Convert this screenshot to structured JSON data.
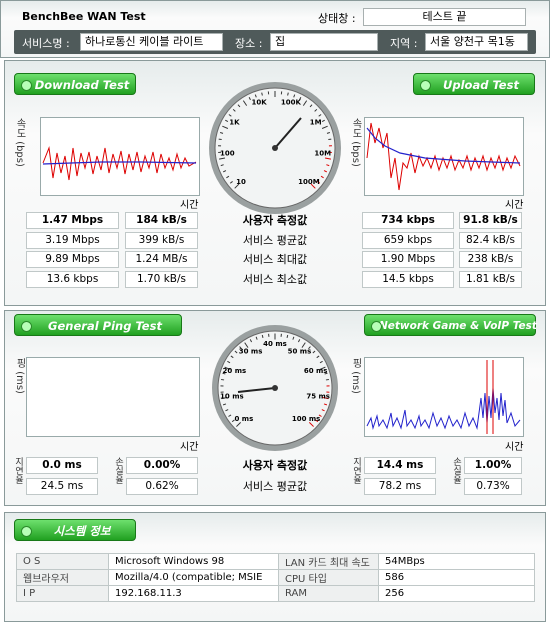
{
  "header": {
    "title": "BenchBee WAN Test",
    "status_label": "상태창 :",
    "status": "테스트 끝",
    "service_label": "서비스명 :",
    "service": "하나로통신 케이블 라이트",
    "place_label": "장소 :",
    "place": "집",
    "region_label": "지역 :",
    "region": "서울 양천구 목1동"
  },
  "speed": {
    "download_button": "Download Test",
    "upload_button": "Upload Test",
    "y_label": "속도 (bps)",
    "x_label": "시간",
    "gauge_labels": [
      "10",
      "100",
      "1K",
      "10K",
      "100K",
      "1M",
      "10M",
      "100M"
    ],
    "row_labels": [
      "사용자 측정값",
      "서비스 평균값",
      "서비스 최대값",
      "서비스 최소값"
    ],
    "download": [
      [
        "1.47 Mbps",
        "184 kB/s"
      ],
      [
        "3.19 Mbps",
        "399 kB/s"
      ],
      [
        "9.89 Mbps",
        "1.24 MB/s"
      ],
      [
        "13.6 kbps",
        "1.70 kB/s"
      ]
    ],
    "upload": [
      [
        "734 kbps",
        "91.8 kB/s"
      ],
      [
        "659 kbps",
        "82.4 kB/s"
      ],
      [
        "1.90 Mbps",
        "238 kB/s"
      ],
      [
        "14.5 kbps",
        "1.81 kB/s"
      ]
    ]
  },
  "ping": {
    "ping_button": "General Ping Test",
    "game_button": "Network Game & VoIP Test",
    "y_label": "핑 (ms)",
    "x_label": "시간",
    "delay_label": "지연율",
    "loss_label": "손실율",
    "gauge_labels": [
      "0 ms",
      "10 ms",
      "20 ms",
      "30 ms",
      "40 ms",
      "50 ms",
      "60 ms",
      "75 ms",
      "100 ms"
    ],
    "row_labels": [
      "사용자 측정값",
      "서비스 평균값"
    ],
    "general": [
      [
        "0.0 ms",
        "0.00%"
      ],
      [
        "24.5 ms",
        "0.62%"
      ]
    ],
    "game": [
      [
        "14.4 ms",
        "1.00%"
      ],
      [
        "78.2 ms",
        "0.73%"
      ]
    ]
  },
  "system": {
    "button": "시스템 정보",
    "rows": [
      [
        "O S",
        "Microsoft Windows 98",
        "LAN 카드 최대 속도",
        "54MBps"
      ],
      [
        "웹브라우저",
        "Mozilla/4.0 (compatible; MSIE",
        "CPU 타입",
        "586"
      ],
      [
        "I P",
        "192.168.11.3",
        "RAM",
        "256"
      ]
    ]
  }
}
